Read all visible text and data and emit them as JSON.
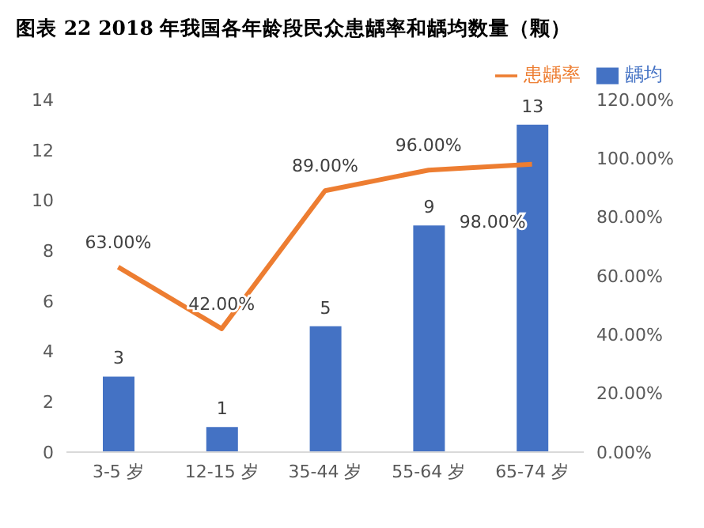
{
  "chart_data": {
    "type": "bar",
    "title": "图表 22 2018 年我国各年龄段民众患龋率和龋均数量（颗）",
    "categories": [
      "3-5 岁",
      "12-15 岁",
      "35-44 岁",
      "55-64 岁",
      "65-74 岁"
    ],
    "series": [
      {
        "name": "龋均",
        "color": "#4472c4",
        "values": [
          3,
          1,
          5,
          9,
          13
        ],
        "value_labels": [
          "3",
          "1",
          "5",
          "9",
          "13"
        ]
      },
      {
        "name": "患龋率",
        "type": "line",
        "axis": "y2",
        "color": "#ed7d31",
        "values": [
          63,
          42,
          89,
          96,
          98
        ],
        "value_labels": [
          "63.00%",
          "42.00%",
          "89.00%",
          "96.00%",
          "98.00%"
        ]
      }
    ],
    "ylim": [
      0,
      14
    ],
    "yticks": [
      0,
      2,
      4,
      6,
      8,
      10,
      12,
      14
    ],
    "y2lim": [
      0,
      120
    ],
    "y2ticks": [
      {
        "value": 0,
        "label": "0.00%"
      },
      {
        "value": 20,
        "label": "20.00%"
      },
      {
        "value": 40,
        "label": "40.00%"
      },
      {
        "value": 60,
        "label": "60.00%"
      },
      {
        "value": 80,
        "label": "80.00%"
      },
      {
        "value": 100,
        "label": "100.00%"
      },
      {
        "value": 120,
        "label": "120.00%"
      }
    ],
    "legend": "top right",
    "marker": "none"
  }
}
